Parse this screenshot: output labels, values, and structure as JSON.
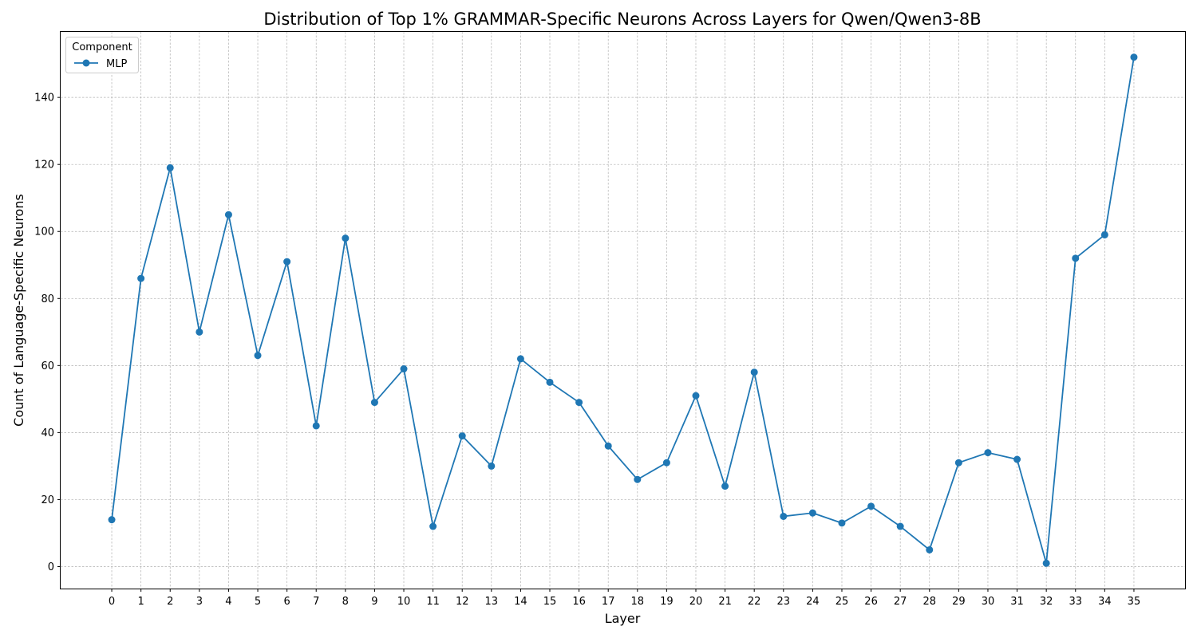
{
  "chart_data": {
    "type": "line",
    "title": "Distribution of Top 1% GRAMMAR-Specific Neurons Across Layers for Qwen/Qwen3-8B",
    "xlabel": "Layer",
    "ylabel": "Count of Language-Specific Neurons",
    "x": [
      0,
      1,
      2,
      3,
      4,
      5,
      6,
      7,
      8,
      9,
      10,
      11,
      12,
      13,
      14,
      15,
      16,
      17,
      18,
      19,
      20,
      21,
      22,
      23,
      24,
      25,
      26,
      27,
      28,
      29,
      30,
      31,
      32,
      33,
      34,
      35
    ],
    "series": [
      {
        "name": "MLP",
        "color": "#1f77b4",
        "marker": "circle",
        "values": [
          14,
          86,
          119,
          70,
          105,
          63,
          91,
          42,
          98,
          49,
          59,
          12,
          39,
          30,
          62,
          55,
          49,
          36,
          26,
          31,
          51,
          24,
          58,
          15,
          16,
          13,
          18,
          12,
          5,
          31,
          34,
          32,
          1,
          92,
          99,
          152
        ]
      }
    ],
    "xlim": [
      -1.75,
      36.75
    ],
    "ylim": [
      -6.55,
      159.55
    ],
    "yticks": [
      0,
      20,
      40,
      60,
      80,
      100,
      120,
      140
    ],
    "grid": true,
    "legend": {
      "title": "Component",
      "placement": "top-left"
    }
  }
}
